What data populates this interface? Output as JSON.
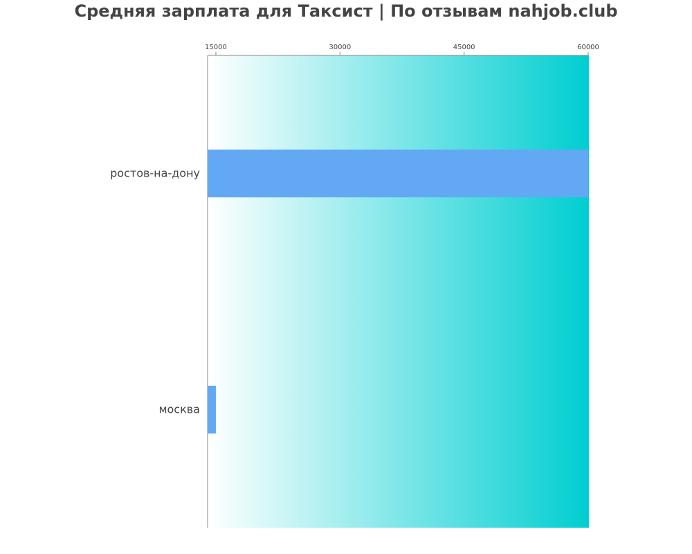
{
  "chart_data": {
    "type": "bar",
    "orientation": "horizontal",
    "title": "Средняя зарплата для Таксист | По отзывам nahjob.club",
    "categories": [
      "ростов-на-дону",
      "москва"
    ],
    "values": [
      60000,
      15000
    ],
    "xlim": [
      14000,
      60000
    ],
    "xticks": [
      "15000",
      "30000",
      "45000",
      "60000"
    ],
    "xtick_values": [
      15000,
      30000,
      45000,
      60000
    ],
    "xaxis_position": "top",
    "grid": false,
    "legend": "none",
    "colors": {
      "bar": "#63a8f3",
      "background_gradient_start": "#ffffff",
      "background_gradient_end": "#00ced1",
      "title": "#444444",
      "text": "#444444"
    }
  }
}
